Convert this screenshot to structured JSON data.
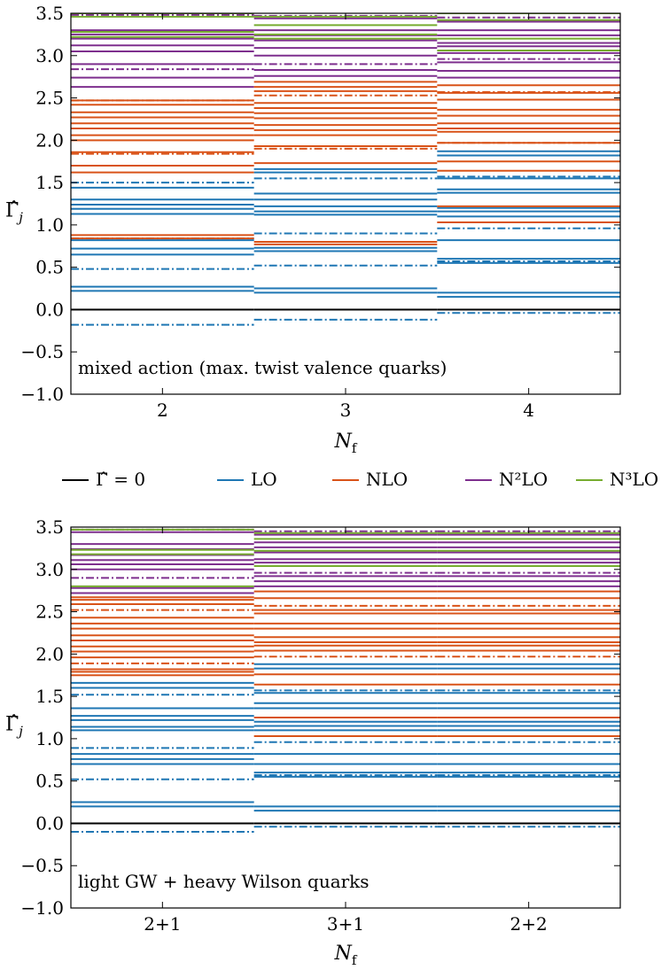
{
  "legend": {
    "entries": [
      {
        "key": "zero",
        "label": "Γ̂ = 0",
        "color": "#000000"
      },
      {
        "key": "LO",
        "label": "LO",
        "color": "#1f77b4"
      },
      {
        "key": "NLO",
        "label": "NLO",
        "color": "#d95319"
      },
      {
        "key": "N2LO",
        "label": "N²LO",
        "color": "#7e2f8e"
      },
      {
        "key": "N3LO",
        "label": "N³LO",
        "color": "#77ac30"
      }
    ]
  },
  "chart_data": [
    {
      "type": "line",
      "title": "",
      "annotation": "mixed action (max. twist valence quarks)",
      "xlabel": "N_f",
      "ylabel": "Γ̂_j",
      "ylim": [
        -1.0,
        3.5
      ],
      "yticks": [
        "−1.0",
        "−0.5",
        "0.0",
        "0.5",
        "1.0",
        "1.5",
        "2.0",
        "2.5",
        "3.0",
        "3.5"
      ],
      "yticks_values": [
        -1.0,
        -0.5,
        0.0,
        0.5,
        1.0,
        1.5,
        2.0,
        2.5,
        3.0,
        3.5
      ],
      "categories": [
        "2",
        "3",
        "4"
      ],
      "groups": [
        {
          "zero": [
            0.0
          ],
          "LO": [
            0.22,
            0.27,
            0.65,
            0.72,
            0.82,
            1.13,
            1.19,
            1.24,
            1.3,
            1.44
          ],
          "LO_dashed": [
            -0.18,
            0.48,
            0.84,
            1.5
          ],
          "NLO": [
            0.84,
            0.88,
            1.62,
            1.7,
            1.86,
            2.0,
            2.06,
            2.14,
            2.2,
            2.27,
            2.33,
            2.42,
            2.47
          ],
          "NLO_dashed": [
            1.84,
            2.47
          ],
          "N2LO": [
            2.63,
            2.74,
            2.9,
            3.05,
            3.12,
            3.2,
            3.25,
            3.3
          ],
          "N2LO_dashed": [
            2.84,
            3.48
          ],
          "N3LO": [
            3.22,
            3.28,
            3.46,
            3.5
          ]
        },
        {
          "zero": [
            0.0
          ],
          "LO": [
            0.2,
            0.25,
            0.69,
            0.73,
            1.12,
            1.16,
            1.22,
            1.3,
            1.37,
            1.62,
            1.66
          ],
          "LO_dashed": [
            -0.12,
            0.52,
            0.9,
            1.55
          ],
          "NLO": [
            0.77,
            0.8,
            1.73,
            1.93,
            2.06,
            2.12,
            2.18,
            2.26,
            2.32,
            2.38,
            2.44,
            2.58,
            2.63,
            2.69
          ],
          "NLO_dashed": [
            1.9,
            2.53
          ],
          "N2LO": [
            2.76,
            2.83,
            3.0,
            3.09,
            3.18,
            3.24,
            3.3,
            3.44
          ],
          "N2LO_dashed": [
            2.9,
            3.47
          ],
          "N3LO": [
            3.2,
            3.25,
            3.36,
            3.46
          ]
        },
        {
          "zero": [
            0.0
          ],
          "LO": [
            0.15,
            0.2,
            0.55,
            0.6,
            0.82,
            1.1,
            1.16,
            1.2,
            1.38,
            1.42,
            1.55,
            1.82,
            1.87
          ],
          "LO_dashed": [
            -0.04,
            0.57,
            0.96,
            1.57
          ],
          "NLO": [
            1.03,
            1.22,
            1.64,
            1.75,
            1.97,
            2.1,
            2.14,
            2.2,
            2.29,
            2.36,
            2.48,
            2.56,
            2.65
          ],
          "NLO_dashed": [
            1.97,
            2.57
          ],
          "N2LO": [
            2.74,
            2.82,
            2.92,
            3.03,
            3.11,
            3.15,
            3.24,
            3.3,
            3.4
          ],
          "N2LO_dashed": [
            2.96,
            3.45
          ],
          "N3LO": [
            3.06,
            3.2,
            3.42,
            3.5
          ]
        }
      ]
    },
    {
      "type": "line",
      "title": "",
      "annotation": "light GW + heavy Wilson quarks",
      "xlabel": "N_f",
      "ylabel": "Γ̂_j",
      "ylim": [
        -1.0,
        3.5
      ],
      "yticks": [
        "−1.0",
        "−0.5",
        "0.0",
        "0.5",
        "1.0",
        "1.5",
        "2.0",
        "2.5",
        "3.0",
        "3.5"
      ],
      "yticks_values": [
        -1.0,
        -0.5,
        0.0,
        0.5,
        1.0,
        1.5,
        2.0,
        2.5,
        3.0,
        3.5
      ],
      "categories": [
        "2+1",
        "3+1",
        "2+2"
      ],
      "groups": [
        {
          "zero": [
            0.0
          ],
          "LO": [
            0.2,
            0.25,
            0.7,
            0.76,
            0.82,
            1.1,
            1.14,
            1.22,
            1.27,
            1.36,
            1.6,
            1.66
          ],
          "LO_dashed": [
            -0.1,
            0.52,
            0.89,
            1.52
          ],
          "NLO": [
            1.75,
            1.79,
            1.82,
            1.96,
            2.03,
            2.09,
            2.16,
            2.22,
            2.3,
            2.36,
            2.43,
            2.59,
            2.64,
            2.67
          ],
          "NLO_dashed": [
            1.89,
            2.52
          ],
          "N2LO": [
            2.72,
            2.78,
            3.0,
            3.06,
            3.11,
            3.17,
            3.24,
            3.3,
            3.44
          ],
          "N2LO_dashed": [
            2.9,
            3.47
          ],
          "N3LO": [
            2.8,
            3.18,
            3.23,
            3.47
          ]
        },
        {
          "zero": [
            0.0
          ],
          "LO": [
            0.15,
            0.2,
            0.55,
            0.6,
            0.7,
            0.82,
            1.1,
            1.15,
            1.2,
            1.36,
            1.42,
            1.54,
            1.83,
            1.88
          ],
          "LO_dashed": [
            -0.04,
            0.57,
            0.96,
            1.57
          ],
          "NLO": [
            1.03,
            1.25,
            1.64,
            1.76,
            2.04,
            2.1,
            2.14,
            2.2,
            2.3,
            2.36,
            2.48,
            2.52,
            2.66,
            2.74
          ],
          "NLO_dashed": [
            1.97,
            2.57
          ],
          "N2LO": [
            2.8,
            2.86,
            2.92,
            3.08,
            3.12,
            3.2,
            3.26,
            3.32,
            3.41
          ],
          "N2LO_dashed": [
            2.96,
            3.45
          ],
          "N3LO": [
            3.04,
            3.22,
            3.36,
            3.43
          ]
        },
        {
          "zero": [
            0.0
          ],
          "LO": [
            0.15,
            0.2,
            0.55,
            0.6,
            0.7,
            0.82,
            1.1,
            1.15,
            1.2,
            1.36,
            1.42,
            1.54,
            1.83,
            1.88
          ],
          "LO_dashed": [
            -0.04,
            0.57,
            0.96,
            1.57
          ],
          "NLO": [
            1.03,
            1.25,
            1.64,
            1.76,
            2.04,
            2.1,
            2.14,
            2.2,
            2.3,
            2.36,
            2.48,
            2.52,
            2.66,
            2.74
          ],
          "NLO_dashed": [
            1.97,
            2.57
          ],
          "N2LO": [
            2.8,
            2.86,
            2.92,
            3.08,
            3.12,
            3.2,
            3.26,
            3.32,
            3.41
          ],
          "N2LO_dashed": [
            2.96,
            3.45
          ],
          "N3LO": [
            3.04,
            3.22,
            3.36,
            3.43
          ]
        }
      ]
    }
  ]
}
